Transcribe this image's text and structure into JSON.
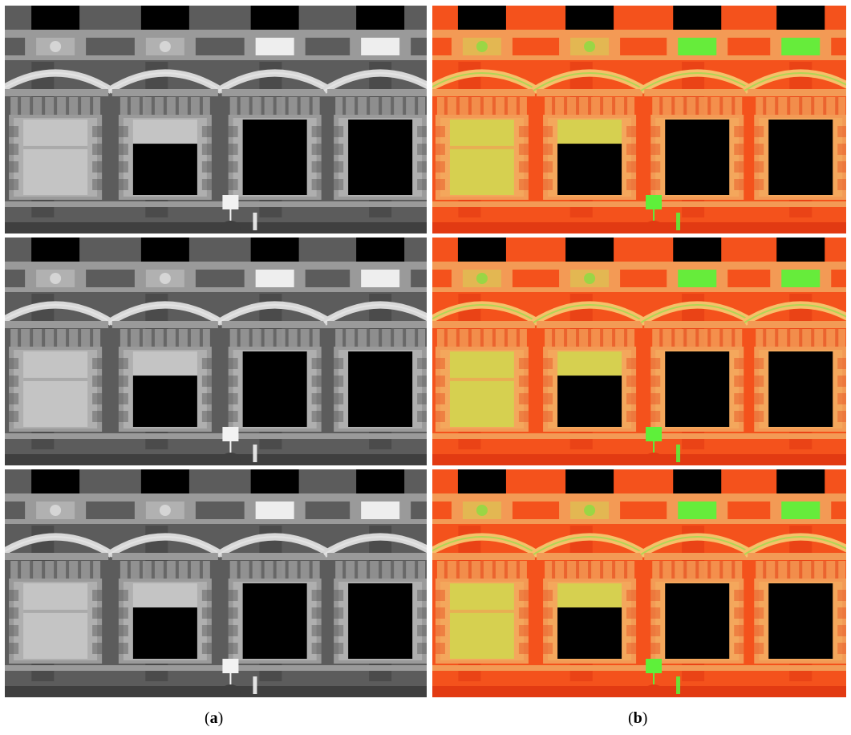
{
  "figure": {
    "columns": [
      {
        "id": "a",
        "caption": {
          "open": "(",
          "letter": "a",
          "close": ")"
        },
        "style": "grayscale",
        "colors": {
          "wall": "#5c5c5c",
          "wall_dark": "#3f3f3f",
          "stone": "#9a9a9a",
          "stone_light": "#d8d8d8",
          "infill": "#c4c4c4",
          "hot": "#f2f2f2",
          "void": "#000000"
        },
        "frames": 3
      },
      {
        "id": "b",
        "caption": {
          "open": "(",
          "letter": "b",
          "close": ")"
        },
        "style": "false-color",
        "colors": {
          "wall": "#f4521c",
          "wall_dark": "#e23a12",
          "stone": "#f39a55",
          "stone_light": "#f7c06a",
          "infill": "#d6d050",
          "hot": "#5ef03a",
          "void": "#000000"
        },
        "frames": 3
      }
    ]
  }
}
